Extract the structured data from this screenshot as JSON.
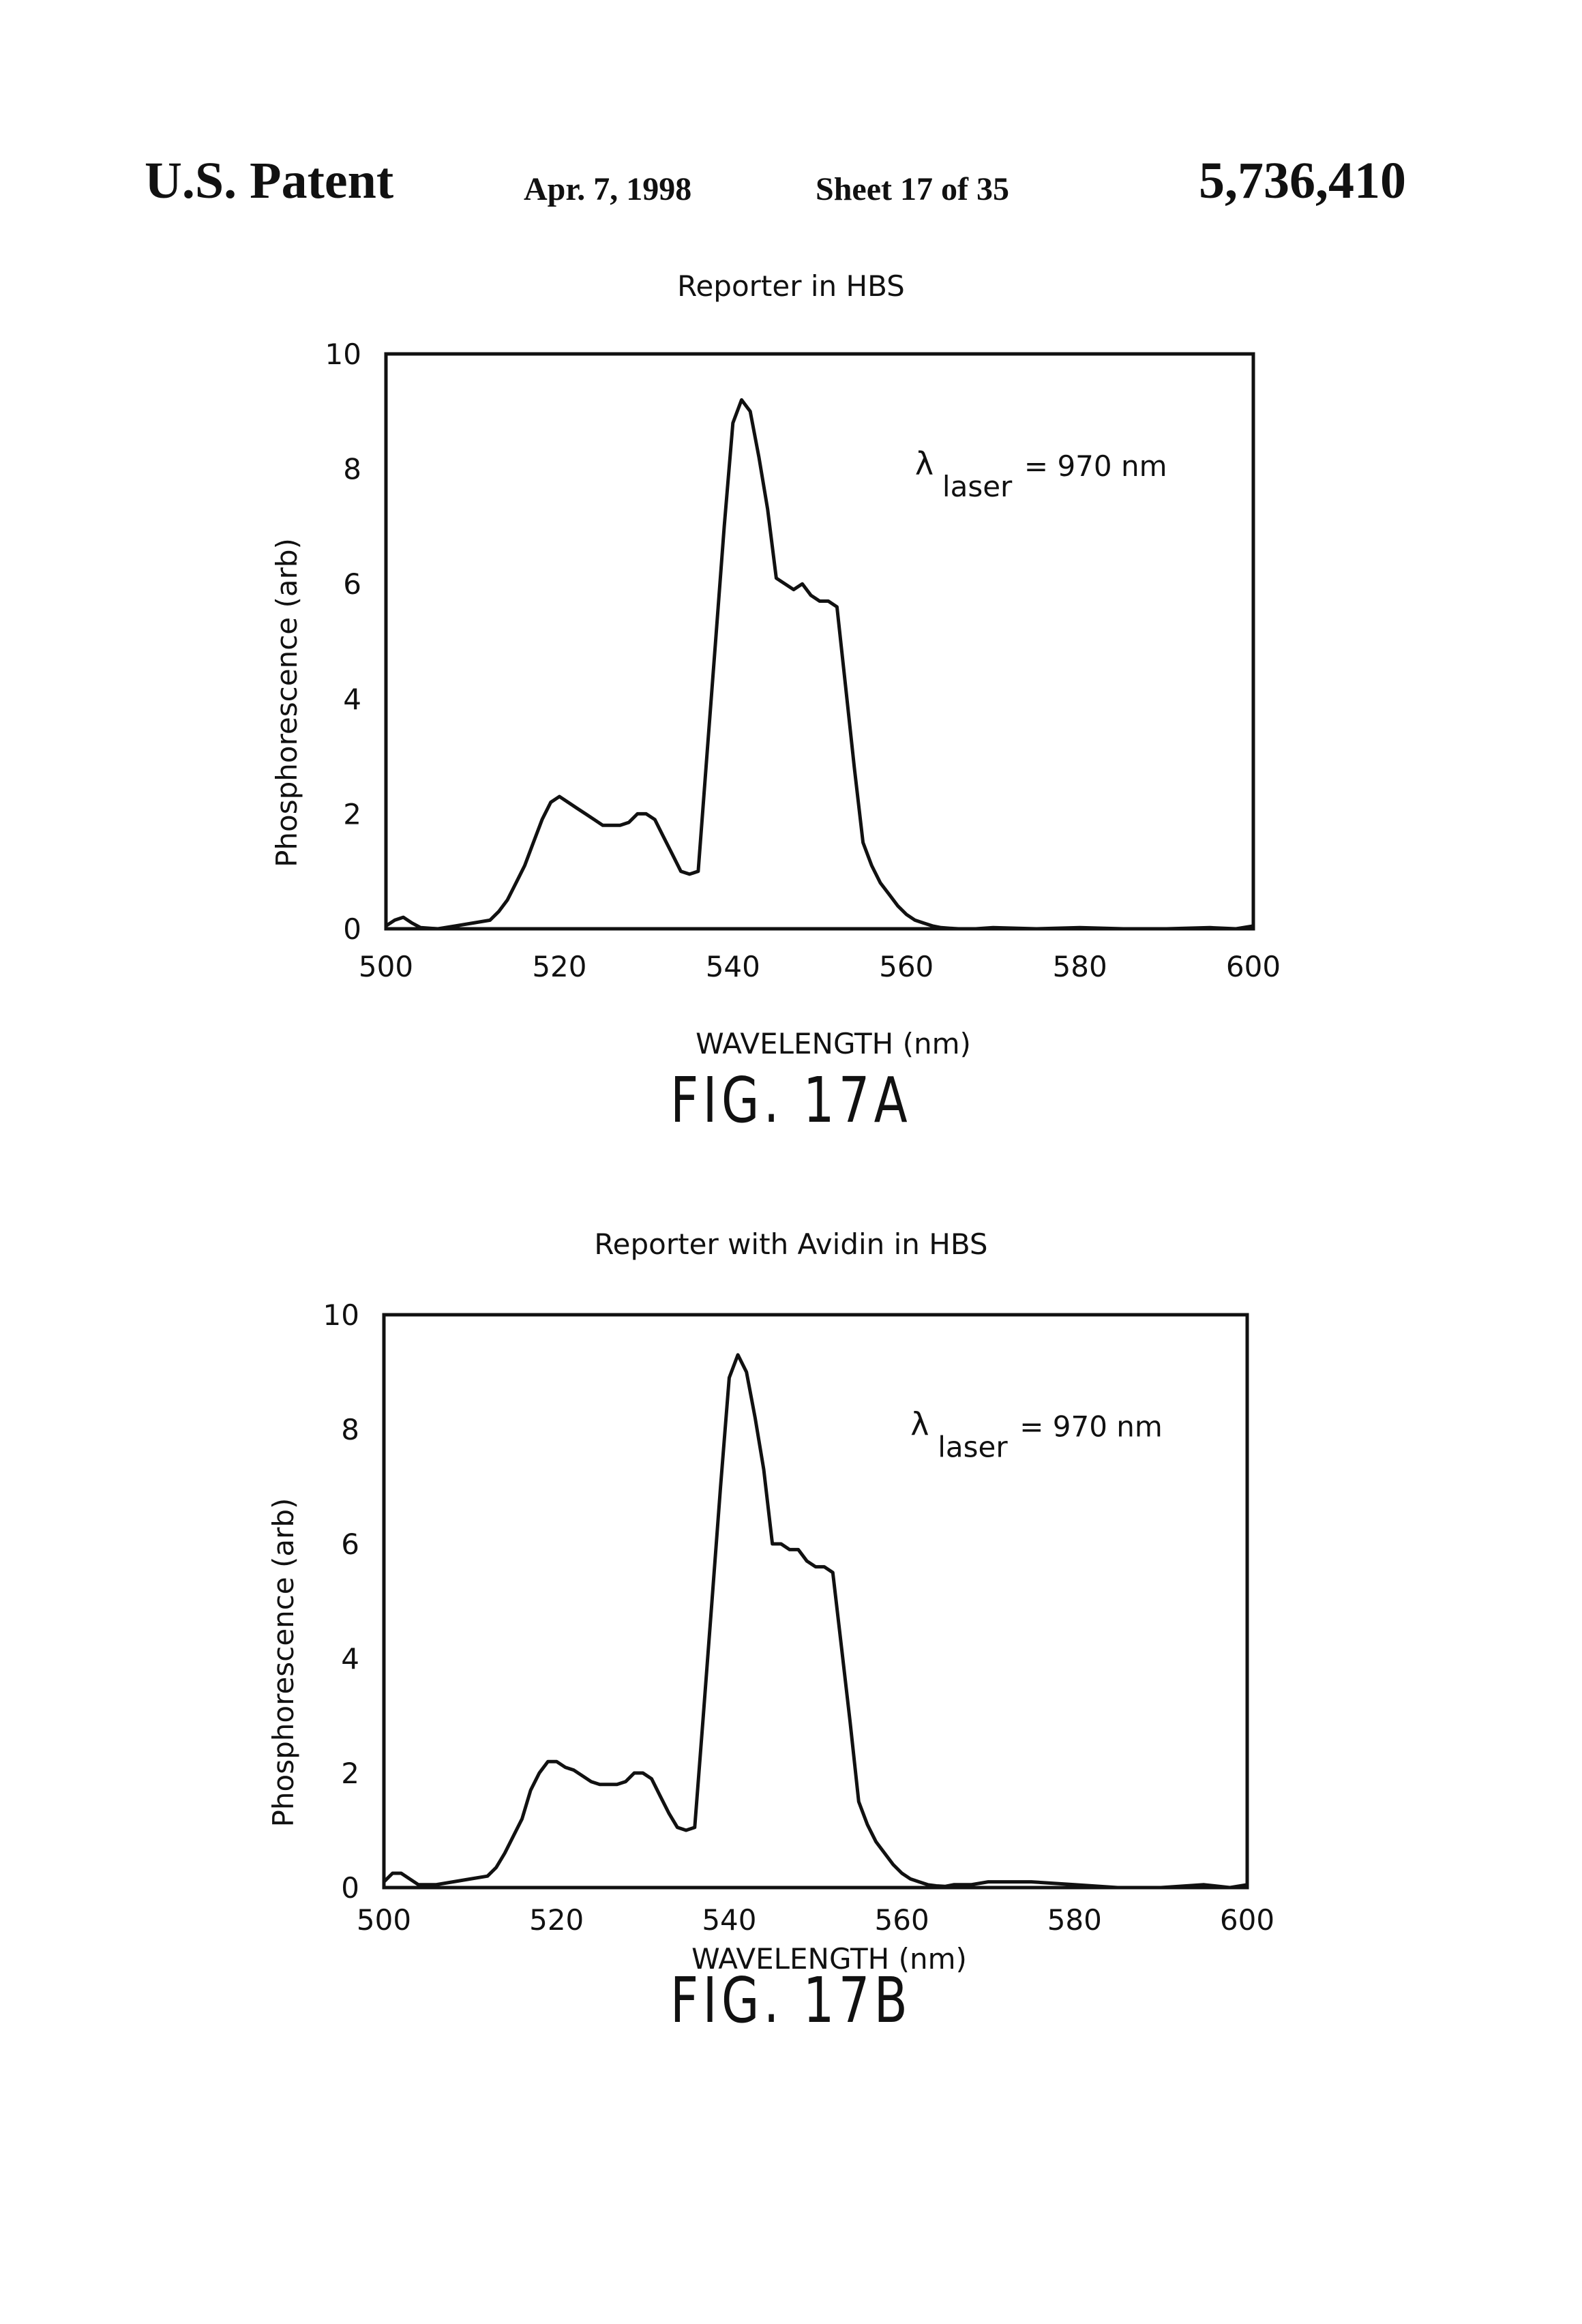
{
  "header": {
    "left": "U.S. Patent",
    "date": "Apr. 7, 1998",
    "sheet": "Sheet 17 of 35",
    "patent_number": "5,736,410"
  },
  "chart_data": [
    {
      "type": "line",
      "title": "Reporter in HBS",
      "xlabel": "WAVELENGTH (nm)",
      "ylabel": "Phosphorescence (arb)",
      "xlim": [
        500,
        600
      ],
      "ylim": [
        0,
        10
      ],
      "xticks": [
        "500",
        "520",
        "540",
        "560",
        "580",
        "600"
      ],
      "yticks": [
        "0",
        "2",
        "4",
        "6",
        "8",
        "10"
      ],
      "grid": false,
      "annotation": {
        "symbol": "λ",
        "subscript": "laser",
        "text": "= 970 nm"
      },
      "figure_label": "FIG. 17A",
      "series": [
        {
          "x": [
            500,
            501,
            502,
            503,
            504,
            506,
            508,
            510,
            512,
            513,
            514,
            515,
            516,
            517,
            518,
            519,
            520,
            521,
            522,
            523,
            524,
            525,
            526,
            527,
            528,
            529,
            530,
            531,
            532,
            533,
            534,
            535,
            536,
            537,
            538,
            539,
            540,
            541,
            542,
            543,
            544,
            545,
            546,
            547,
            548,
            549,
            550,
            551,
            552,
            553,
            554,
            555,
            556,
            557,
            558,
            559,
            560,
            561,
            562,
            563,
            564,
            565,
            566,
            568,
            570,
            575,
            580,
            585,
            590,
            595,
            598,
            600
          ],
          "y": [
            0.05,
            0.15,
            0.2,
            0.1,
            0.02,
            0.0,
            0.05,
            0.1,
            0.15,
            0.3,
            0.5,
            0.8,
            1.1,
            1.5,
            1.9,
            2.2,
            2.3,
            2.2,
            2.1,
            2.0,
            1.9,
            1.8,
            1.8,
            1.8,
            1.85,
            2.0,
            2.0,
            1.9,
            1.6,
            1.3,
            1.0,
            0.95,
            1.0,
            3.0,
            5.0,
            7.0,
            8.8,
            9.2,
            9.0,
            8.2,
            7.3,
            6.1,
            6.0,
            5.9,
            6.0,
            5.8,
            5.7,
            5.7,
            5.6,
            4.2,
            2.8,
            1.5,
            1.1,
            0.8,
            0.6,
            0.4,
            0.25,
            0.15,
            0.1,
            0.05,
            0.02,
            0.01,
            0.0,
            0.0,
            0.02,
            0.0,
            0.02,
            0.0,
            0.0,
            0.02,
            0.0,
            0.05
          ]
        }
      ]
    },
    {
      "type": "line",
      "title": "Reporter with Avidin in HBS",
      "xlabel": "WAVELENGTH (nm)",
      "ylabel": "Phosphorescence (arb)",
      "xlim": [
        500,
        600
      ],
      "ylim": [
        0,
        10
      ],
      "xticks": [
        "500",
        "520",
        "540",
        "560",
        "580",
        "600"
      ],
      "yticks": [
        "0",
        "2",
        "4",
        "6",
        "8",
        "10"
      ],
      "grid": false,
      "annotation": {
        "symbol": "λ",
        "subscript": "laser",
        "text": "= 970 nm"
      },
      "figure_label": "FIG. 17B",
      "series": [
        {
          "x": [
            500,
            501,
            502,
            503,
            504,
            506,
            508,
            510,
            512,
            513,
            514,
            515,
            516,
            517,
            518,
            519,
            520,
            521,
            522,
            523,
            524,
            525,
            526,
            527,
            528,
            529,
            530,
            531,
            532,
            533,
            534,
            535,
            536,
            537,
            538,
            539,
            540,
            541,
            542,
            543,
            544,
            545,
            546,
            547,
            548,
            549,
            550,
            551,
            552,
            553,
            554,
            555,
            556,
            557,
            558,
            559,
            560,
            561,
            562,
            563,
            564,
            565,
            566,
            568,
            570,
            575,
            580,
            585,
            590,
            595,
            598,
            600
          ],
          "y": [
            0.1,
            0.25,
            0.25,
            0.15,
            0.05,
            0.05,
            0.1,
            0.15,
            0.2,
            0.35,
            0.6,
            0.9,
            1.2,
            1.7,
            2.0,
            2.2,
            2.2,
            2.1,
            2.05,
            1.95,
            1.85,
            1.8,
            1.8,
            1.8,
            1.85,
            2.0,
            2.0,
            1.9,
            1.6,
            1.3,
            1.05,
            1.0,
            1.05,
            3.0,
            5.0,
            7.0,
            8.9,
            9.3,
            9.0,
            8.2,
            7.3,
            6.0,
            6.0,
            5.9,
            5.9,
            5.7,
            5.6,
            5.6,
            5.5,
            4.2,
            2.9,
            1.5,
            1.1,
            0.8,
            0.6,
            0.4,
            0.25,
            0.15,
            0.1,
            0.05,
            0.03,
            0.02,
            0.05,
            0.05,
            0.1,
            0.1,
            0.05,
            0.0,
            0.0,
            0.05,
            0.0,
            0.05
          ]
        }
      ]
    }
  ]
}
